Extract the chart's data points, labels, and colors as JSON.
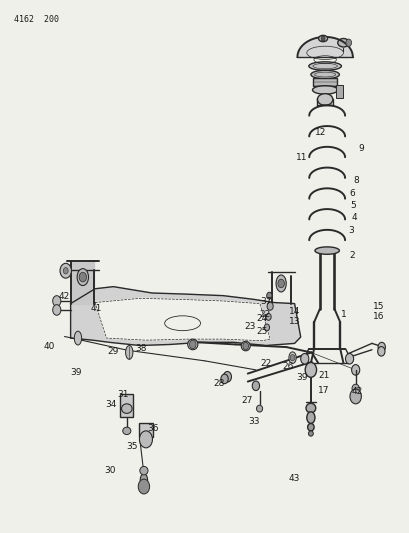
{
  "bg_color": "#f0f0eb",
  "line_color": "#2a2a2a",
  "label_color": "#1a1a1a",
  "page_id": "4162  200",
  "fig_width": 4.1,
  "fig_height": 5.33,
  "dpi": 100
}
